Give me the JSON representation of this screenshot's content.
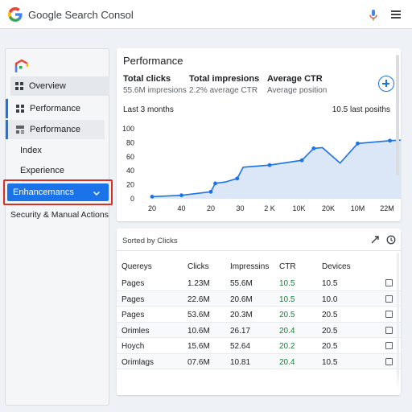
{
  "app": {
    "title": "Google Search Consol",
    "colors": {
      "accent": "#1a73e8",
      "ctr_green": "#188038",
      "highlight_border": "#d93025"
    }
  },
  "sidebar": {
    "items": [
      {
        "label": "Overview",
        "icon": "grid-icon"
      },
      {
        "label": "Performance",
        "icon": "grid-icon"
      },
      {
        "label": "Performance",
        "icon": "chart-icon"
      },
      {
        "label": "Index"
      },
      {
        "label": "Experience"
      },
      {
        "label": "Enhancemancs",
        "icon": "chevron-down-icon",
        "selected": true
      },
      {
        "label": "Security & Manual Actions"
      }
    ]
  },
  "performance": {
    "title": "Performance",
    "metrics": [
      {
        "label": "Total clicks",
        "sub": "55.6M impresions"
      },
      {
        "label": "Total impresions",
        "sub": "2.2% average CTR"
      },
      {
        "label": "Average CTR",
        "sub": "Average position"
      }
    ],
    "range": "Last 3 months",
    "last_positions": "10.5 last posiths"
  },
  "chart_data": {
    "type": "area",
    "categories": [
      "20",
      "40",
      "20",
      "30",
      "2 K",
      "10K",
      "20K",
      "10M",
      "22M"
    ],
    "y_ticks": [
      "100",
      "80",
      "60",
      "40",
      "20",
      "0"
    ],
    "ylim": [
      0,
      100
    ],
    "series": [
      {
        "points": [
          [
            0.0,
            3
          ],
          [
            1.0,
            5
          ],
          [
            2.0,
            10
          ],
          [
            2.15,
            22
          ],
          [
            2.5,
            24
          ],
          [
            2.9,
            29
          ],
          [
            3.1,
            45
          ],
          [
            4.0,
            48
          ],
          [
            5.1,
            55
          ],
          [
            5.5,
            72
          ],
          [
            5.8,
            73
          ],
          [
            6.4,
            51
          ],
          [
            7.0,
            79
          ],
          [
            8.1,
            83
          ],
          [
            8.6,
            84
          ]
        ]
      }
    ],
    "xlabel": "",
    "ylabel": "",
    "grid": false
  },
  "table": {
    "sort_label": "Sorted by Clicks",
    "columns": [
      "Quereys",
      "Clicks",
      "Impressins",
      "CTR",
      "Devices"
    ],
    "rows": [
      [
        "Pages",
        "1.23M",
        "55.6M",
        "10.5",
        "10.5"
      ],
      [
        "Pages",
        "22.6M",
        "20.6M",
        "10.5",
        "10.0"
      ],
      [
        "Pages",
        "53.6M",
        "20.3M",
        "20.5",
        "20.5"
      ],
      [
        "Orimles",
        "10.6M",
        "26.17",
        "20.4",
        "20.5"
      ],
      [
        "Hoych",
        "15.6M",
        "52.64",
        "20.2",
        "20.5"
      ],
      [
        "Orimlags",
        "07.6M",
        "10.81",
        "20.4",
        "10.5"
      ]
    ]
  }
}
